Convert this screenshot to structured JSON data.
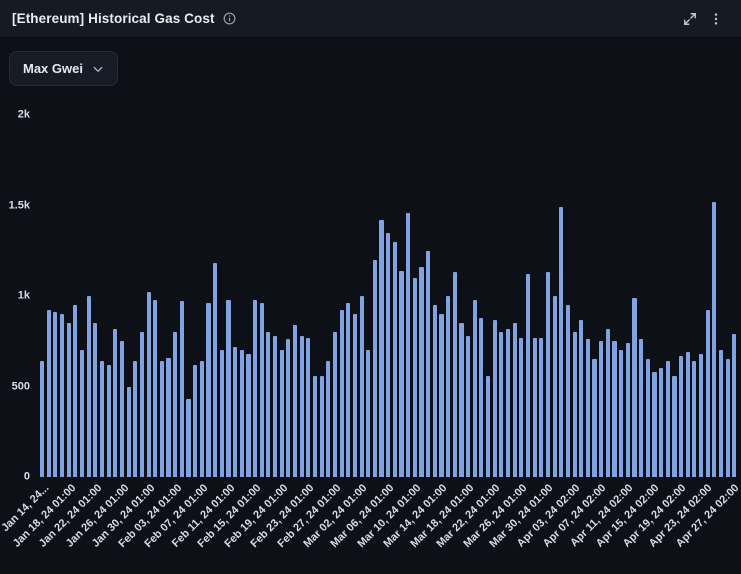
{
  "panel": {
    "title": "[Ethereum] Historical Gas Cost",
    "header_icons": [
      "info-icon",
      "expand-icon",
      "kebab-menu-icon"
    ]
  },
  "toolbar": {
    "metric_dropdown": {
      "value": "Max Gwei"
    }
  },
  "colors": {
    "background": "#0d1017",
    "header_background": "#161a23",
    "bar": "#82a3e2",
    "axis_text": "#d6dbe4"
  },
  "chart_data": {
    "type": "bar",
    "title": "[Ethereum] Historical Gas Cost",
    "series_name": "Max Gwei",
    "unit": "Gwei",
    "ylim": [
      0,
      2000
    ],
    "grid": false,
    "legend": "none",
    "ytick_labels": [
      "0",
      "500",
      "1k",
      "1.5k",
      "2k"
    ],
    "xtick_every": 4,
    "xtick_labels": [
      "Jan 14, 24...",
      "Jan 18, 24 01:00",
      "Jan 22, 24 01:00",
      "Jan 26, 24 01:00",
      "Jan 30, 24 01:00",
      "Feb 03, 24 01:00",
      "Feb 07, 24 01:00",
      "Feb 11, 24 01:00",
      "Feb 15, 24 01:00",
      "Feb 19, 24 01:00",
      "Feb 23, 24 01:00",
      "Feb 27, 24 01:00",
      "Mar 02, 24 01:00",
      "Mar 06, 24 01:00",
      "Mar 10, 24 01:00",
      "Mar 14, 24 01:00",
      "Mar 18, 24 01:00",
      "Mar 22, 24 01:00",
      "Mar 26, 24 01:00",
      "Mar 30, 24 01:00",
      "Apr 03, 24 02:00",
      "Apr 07, 24 02:00",
      "Apr 11, 24 02:00",
      "Apr 15, 24 02:00",
      "Apr 19, 24 02:00",
      "Apr 23, 24 02:00",
      "Apr 27, 24 02:00"
    ],
    "values": [
      640,
      920,
      910,
      900,
      850,
      950,
      700,
      1000,
      850,
      640,
      620,
      820,
      750,
      500,
      640,
      800,
      1020,
      980,
      640,
      660,
      800,
      970,
      430,
      620,
      640,
      960,
      1180,
      700,
      980,
      720,
      700,
      680,
      980,
      960,
      800,
      780,
      700,
      760,
      840,
      780,
      770,
      560,
      560,
      640,
      800,
      920,
      960,
      900,
      1000,
      700,
      1200,
      1420,
      1350,
      1300,
      1140,
      1460,
      1100,
      1160,
      1250,
      950,
      900,
      1000,
      1130,
      850,
      780,
      980,
      880,
      560,
      870,
      800,
      820,
      850,
      770,
      1120,
      770,
      770,
      1130,
      1000,
      1490,
      950,
      800,
      870,
      760,
      650,
      750,
      820,
      750,
      700,
      740,
      990,
      760,
      650,
      580,
      600,
      640,
      560,
      670,
      690,
      640,
      680,
      920,
      1520,
      700,
      650,
      790
    ]
  }
}
